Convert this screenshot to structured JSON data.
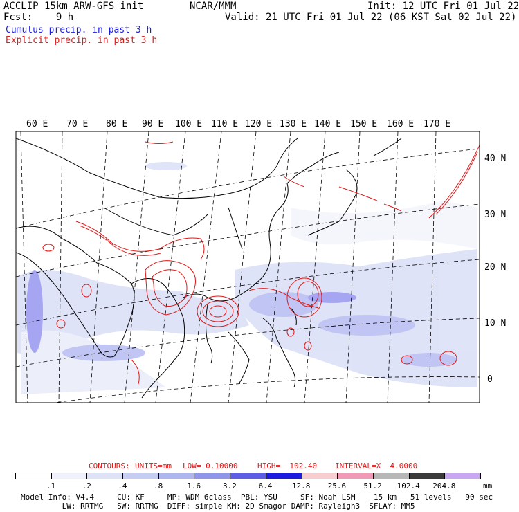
{
  "header": {
    "left_line1": "ACCLIP 15km ARW-GFS init",
    "left_line2": "Fcst:    9 h",
    "center": "NCAR/MMM",
    "init": "Init: 12 UTC Fri 01 Jul 22",
    "valid": "Valid: 21 UTC Fri 01 Jul 22 (06 KST Sat 02 Jul 22)",
    "legend_cumulus": "Cumulus precip. in past 3 h",
    "legend_explicit": "Explicit precip. in past 3 h"
  },
  "colors": {
    "cumulus": "#1c1ce0",
    "explicit": "#e01818"
  },
  "map": {
    "lon_labels": [
      "60 E",
      "70 E",
      "80 E",
      "90 E",
      "100 E",
      "110 E",
      "120 E",
      "130 E",
      "140 E",
      "150 E",
      "160 E",
      "170 E"
    ],
    "lat_labels": [
      "40 N",
      "30 N",
      "20 N",
      "10 N",
      "0"
    ]
  },
  "contours": {
    "label": "CONTOURS:",
    "units": "UNITS=mm",
    "low": "LOW= 0.10000",
    "high": "HIGH=  102.40",
    "interval": "INTERVAL=X  4.0000"
  },
  "colorbar": {
    "labels": [
      ".1",
      ".2",
      ".4",
      ".8",
      "1.6",
      "3.2",
      "6.4",
      "12.8",
      "25.6",
      "51.2",
      "102.4",
      "204.8"
    ],
    "unit": "mm",
    "colors": [
      "#ffffff",
      "#eef0fb",
      "#dde2f7",
      "#c6cdf2",
      "#aeb6ee",
      "#8f96ea",
      "#5d5de6",
      "#1c1ce0",
      "#f6cccf",
      "#f09ab8",
      "#b7b7b7",
      "#3a3a3a",
      "#c9a6f2"
    ]
  },
  "footer": {
    "line1": "Model Info: V4.4     CU: KF     MP: WDM 6class  PBL: YSU     SF: Noah LSM    15 km   51 levels   90 sec",
    "line2": "         LW: RRTMG   SW: RRTMG  DIFF: simple KM: 2D Smagor DAMP: Rayleigh3  SFLAY: MM5"
  }
}
